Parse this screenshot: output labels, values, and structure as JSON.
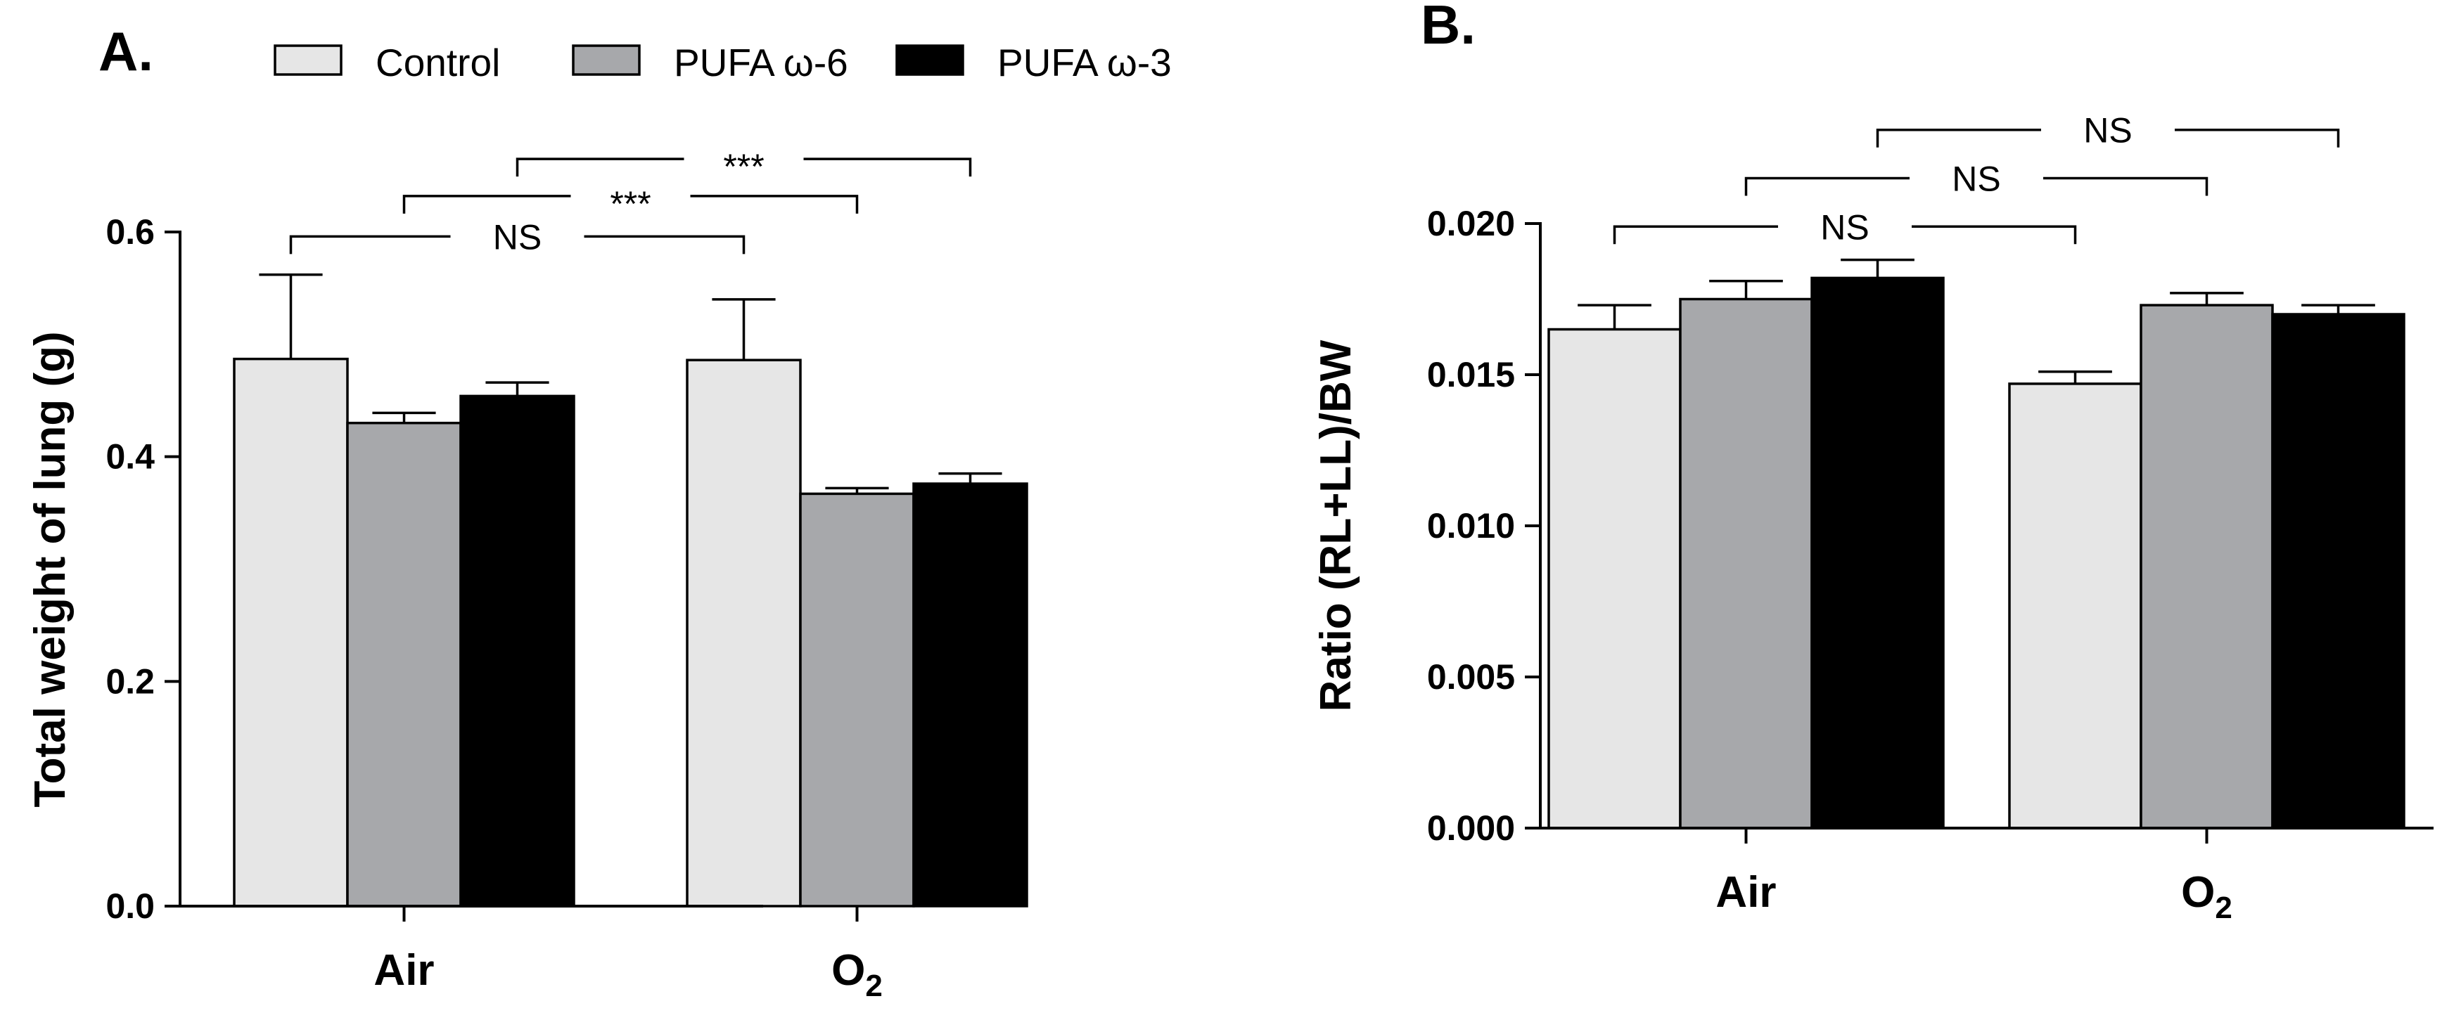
{
  "chart_data": [
    {
      "panel": "A.",
      "type": "bar",
      "ylabel": "Total weight of lung (g)",
      "xlabel": "",
      "ylim": [
        0,
        0.6
      ],
      "yticks": [
        "0.0",
        "0.2",
        "0.4",
        "0.6"
      ],
      "ytick_values": [
        0,
        0.2,
        0.4,
        0.6
      ],
      "categories": [
        {
          "main": "Air",
          "sub": ""
        },
        {
          "main": "O",
          "sub": "2"
        }
      ],
      "series": [
        {
          "name": "Control",
          "color": "#e6e6e6",
          "values": [
            0.487,
            0.486
          ],
          "errors": [
            0.075,
            0.054
          ]
        },
        {
          "name": "PUFA ω-6",
          "color": "#a7a8ab",
          "values": [
            0.43,
            0.367
          ],
          "errors": [
            0.009,
            0.005
          ]
        },
        {
          "name": "PUFA ω-3",
          "color": "#000000",
          "values": [
            0.454,
            0.376
          ],
          "errors": [
            0.012,
            0.009
          ]
        }
      ],
      "annotations": [
        {
          "label": "NS",
          "from": {
            "cat": 0,
            "ser": 0
          },
          "to": {
            "cat": 1,
            "ser": 0
          },
          "level": 0.596
        },
        {
          "label": "***",
          "from": {
            "cat": 0,
            "ser": 1
          },
          "to": {
            "cat": 1,
            "ser": 1
          },
          "level": 0.632
        },
        {
          "label": "***",
          "from": {
            "cat": 0,
            "ser": 2
          },
          "to": {
            "cat": 1,
            "ser": 2
          },
          "level": 0.665
        }
      ]
    },
    {
      "panel": "B.",
      "type": "bar",
      "ylabel": "Ratio (RL+LL)/BW",
      "xlabel": "",
      "ylim": [
        0,
        0.02
      ],
      "yticks": [
        "0.000",
        "0.005",
        "0.010",
        "0.015",
        "0.020"
      ],
      "ytick_values": [
        0,
        0.005,
        0.01,
        0.015,
        0.02
      ],
      "categories": [
        {
          "main": "Air",
          "sub": ""
        },
        {
          "main": "O",
          "sub": "2"
        }
      ],
      "series": [
        {
          "name": "Control",
          "color": "#e6e6e6",
          "values": [
            0.0165,
            0.0147
          ],
          "errors": [
            0.0008,
            0.0004
          ]
        },
        {
          "name": "PUFA ω-6",
          "color": "#a7a8ab",
          "values": [
            0.0175,
            0.0173
          ],
          "errors": [
            0.0006,
            0.0004
          ]
        },
        {
          "name": "PUFA ω-3",
          "color": "#000000",
          "values": [
            0.0182,
            0.017
          ],
          "errors": [
            0.0006,
            0.0003
          ]
        }
      ],
      "annotations": [
        {
          "label": "NS",
          "from": {
            "cat": 0,
            "ser": 0
          },
          "to": {
            "cat": 1,
            "ser": 0
          },
          "level": 0.0199
        },
        {
          "label": "NS",
          "from": {
            "cat": 0,
            "ser": 1
          },
          "to": {
            "cat": 1,
            "ser": 1
          },
          "level": 0.0215
        },
        {
          "label": "NS",
          "from": {
            "cat": 0,
            "ser": 2
          },
          "to": {
            "cat": 1,
            "ser": 2
          },
          "level": 0.0231
        }
      ]
    }
  ]
}
